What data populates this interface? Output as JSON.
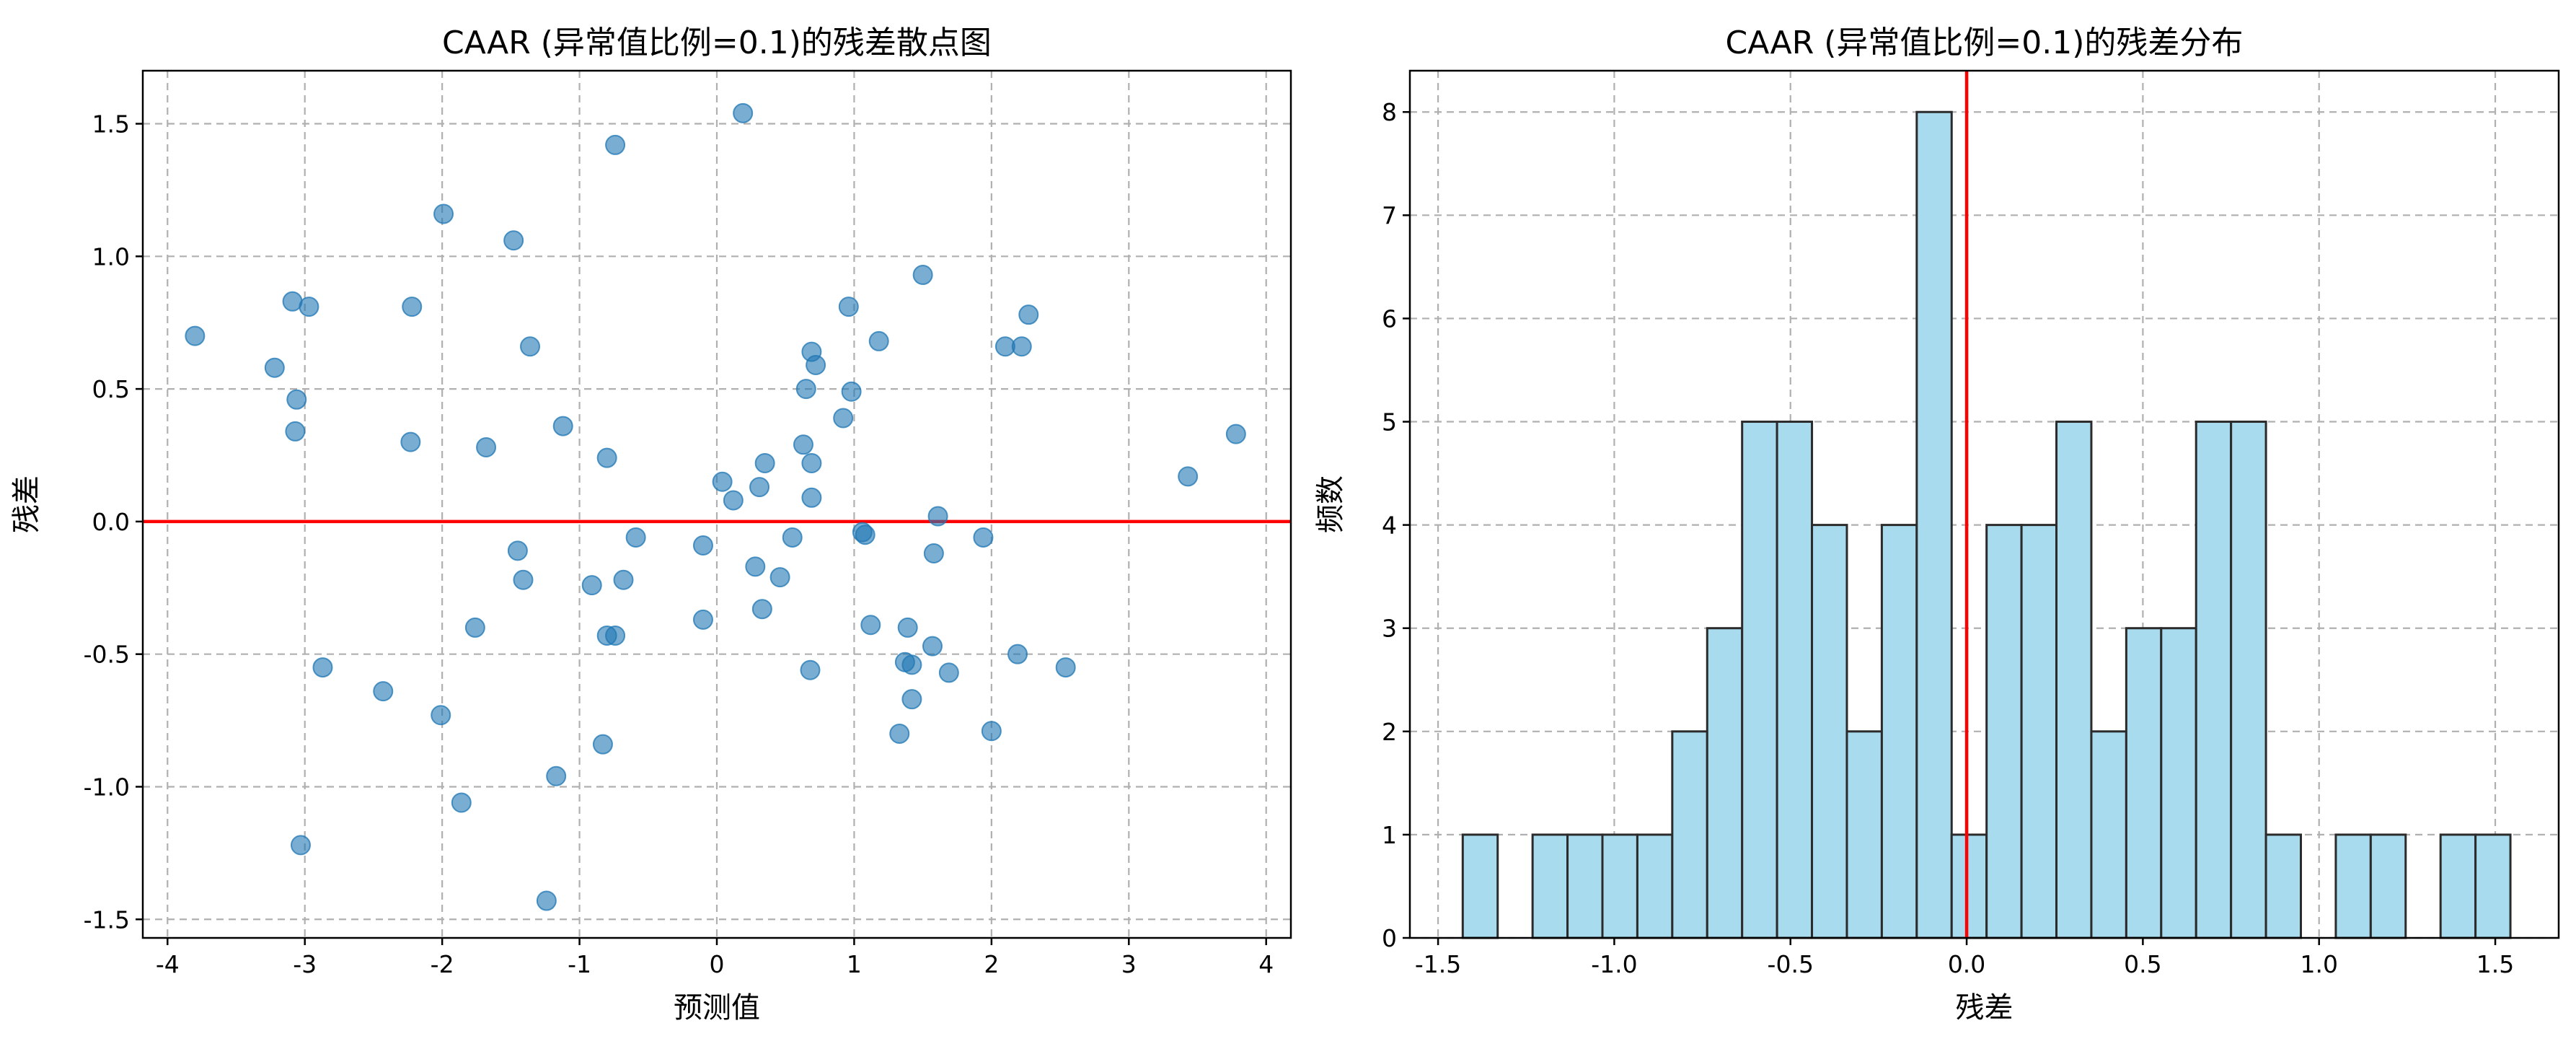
{
  "chart_data": [
    {
      "type": "scatter",
      "title": "CAAR (异常值比例=0.1)的残差散点图",
      "xlabel": "预测值",
      "ylabel": "残差",
      "xlim": [
        -4.18,
        4.18
      ],
      "ylim": [
        -1.57,
        1.7
      ],
      "xticks": [
        -4,
        -3,
        -2,
        -1,
        0,
        1,
        2,
        3,
        4
      ],
      "xtick_labels": [
        "-4",
        "-3",
        "-2",
        "-1",
        "0",
        "1",
        "2",
        "3",
        "4"
      ],
      "yticks": [
        -1.5,
        -1.0,
        -0.5,
        0.0,
        0.5,
        1.0,
        1.5
      ],
      "ytick_labels": [
        "-1.5",
        "-1.0",
        "-0.5",
        "0.0",
        "0.5",
        "1.0",
        "1.5"
      ],
      "grid": true,
      "point_color": "#1f77b4",
      "reference_line": {
        "axis": "y",
        "value": 0,
        "color": "#ff0000"
      },
      "points": [
        {
          "x": -3.8,
          "y": 0.7
        },
        {
          "x": -3.22,
          "y": 0.58
        },
        {
          "x": -3.09,
          "y": 0.83
        },
        {
          "x": -3.06,
          "y": 0.46
        },
        {
          "x": -3.07,
          "y": 0.34
        },
        {
          "x": -2.97,
          "y": 0.81
        },
        {
          "x": -3.03,
          "y": -1.22
        },
        {
          "x": -2.87,
          "y": -0.55
        },
        {
          "x": -2.43,
          "y": -0.64
        },
        {
          "x": -2.22,
          "y": 0.81
        },
        {
          "x": -2.23,
          "y": 0.3
        },
        {
          "x": -1.99,
          "y": 1.16
        },
        {
          "x": -2.01,
          "y": -0.73
        },
        {
          "x": -1.86,
          "y": -1.06
        },
        {
          "x": -1.76,
          "y": -0.4
        },
        {
          "x": -1.68,
          "y": 0.28
        },
        {
          "x": -1.48,
          "y": 1.06
        },
        {
          "x": -1.45,
          "y": -0.11
        },
        {
          "x": -1.41,
          "y": -0.22
        },
        {
          "x": -1.36,
          "y": 0.66
        },
        {
          "x": -1.24,
          "y": -1.43
        },
        {
          "x": -1.17,
          "y": -0.96
        },
        {
          "x": -1.12,
          "y": 0.36
        },
        {
          "x": -0.91,
          "y": -0.24
        },
        {
          "x": -0.83,
          "y": -0.84
        },
        {
          "x": -0.8,
          "y": 0.24
        },
        {
          "x": -0.8,
          "y": -0.43
        },
        {
          "x": -0.74,
          "y": -0.43
        },
        {
          "x": -0.74,
          "y": 1.42
        },
        {
          "x": -0.68,
          "y": -0.22
        },
        {
          "x": -0.59,
          "y": -0.06
        },
        {
          "x": -0.1,
          "y": -0.37
        },
        {
          "x": -0.1,
          "y": -0.09
        },
        {
          "x": 0.04,
          "y": 0.15
        },
        {
          "x": 0.12,
          "y": 0.08
        },
        {
          "x": 0.19,
          "y": 1.54
        },
        {
          "x": 0.28,
          "y": -0.17
        },
        {
          "x": 0.31,
          "y": 0.13
        },
        {
          "x": 0.33,
          "y": -0.33
        },
        {
          "x": 0.35,
          "y": 0.22
        },
        {
          "x": 0.46,
          "y": -0.21
        },
        {
          "x": 0.55,
          "y": -0.06
        },
        {
          "x": 0.63,
          "y": 0.29
        },
        {
          "x": 0.65,
          "y": 0.5
        },
        {
          "x": 0.69,
          "y": 0.64
        },
        {
          "x": 0.69,
          "y": 0.22
        },
        {
          "x": 0.69,
          "y": 0.09
        },
        {
          "x": 0.68,
          "y": -0.56
        },
        {
          "x": 0.72,
          "y": 0.59
        },
        {
          "x": 0.92,
          "y": 0.39
        },
        {
          "x": 0.96,
          "y": 0.81
        },
        {
          "x": 0.98,
          "y": 0.49
        },
        {
          "x": 1.06,
          "y": -0.04
        },
        {
          "x": 1.08,
          "y": -0.05
        },
        {
          "x": 1.12,
          "y": -0.39
        },
        {
          "x": 1.18,
          "y": 0.68
        },
        {
          "x": 1.33,
          "y": -0.8
        },
        {
          "x": 1.37,
          "y": -0.53
        },
        {
          "x": 1.39,
          "y": -0.4
        },
        {
          "x": 1.42,
          "y": -0.54
        },
        {
          "x": 1.42,
          "y": -0.67
        },
        {
          "x": 1.5,
          "y": 0.93
        },
        {
          "x": 1.57,
          "y": -0.47
        },
        {
          "x": 1.58,
          "y": -0.12
        },
        {
          "x": 1.61,
          "y": 0.02
        },
        {
          "x": 1.69,
          "y": -0.57
        },
        {
          "x": 1.94,
          "y": -0.06
        },
        {
          "x": 2.0,
          "y": -0.79
        },
        {
          "x": 2.1,
          "y": 0.66
        },
        {
          "x": 2.19,
          "y": -0.5
        },
        {
          "x": 2.22,
          "y": 0.66
        },
        {
          "x": 2.27,
          "y": 0.78
        },
        {
          "x": 2.54,
          "y": -0.55
        },
        {
          "x": 3.43,
          "y": 0.17
        },
        {
          "x": 3.78,
          "y": 0.33
        }
      ]
    },
    {
      "type": "histogram",
      "title": "CAAR (异常值比例=0.1)的残差分布",
      "xlabel": "残差",
      "ylabel": "频数",
      "xlim": [
        -1.58,
        1.68
      ],
      "ylim": [
        0,
        8.4
      ],
      "xticks": [
        -1.5,
        -1.0,
        -0.5,
        0.0,
        0.5,
        1.0,
        1.5
      ],
      "xtick_labels": [
        "-1.5",
        "-1.0",
        "-0.5",
        "0.0",
        "0.5",
        "1.0",
        "1.5"
      ],
      "yticks": [
        0,
        1,
        2,
        3,
        4,
        5,
        6,
        7,
        8
      ],
      "ytick_labels": [
        "0",
        "1",
        "2",
        "3",
        "4",
        "5",
        "6",
        "7",
        "8"
      ],
      "grid": true,
      "bar_color": "#a8dbee",
      "edge_color": "#2b2b2b",
      "reference_line": {
        "axis": "x",
        "value": 0,
        "color": "#ff0000"
      },
      "bin_start": -1.43,
      "bin_width": 0.0991,
      "counts": [
        1,
        0,
        1,
        1,
        1,
        1,
        2,
        3,
        5,
        5,
        4,
        2,
        4,
        8,
        1,
        4,
        4,
        5,
        2,
        3,
        3,
        5,
        5,
        1,
        0,
        1,
        1,
        0,
        1,
        1
      ]
    }
  ]
}
